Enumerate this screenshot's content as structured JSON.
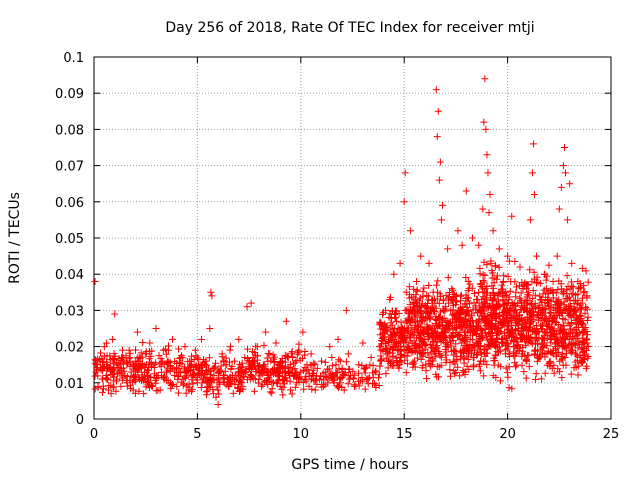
{
  "chart_data": {
    "type": "scatter",
    "title": "Day 256 of 2018, Rate Of TEC Index for receiver mtji",
    "xlabel": "GPS time / hours",
    "ylabel": "ROTI / TECUs",
    "xlim": [
      0,
      25
    ],
    "ylim": [
      0,
      0.1
    ],
    "x_ticks": [
      0,
      5,
      10,
      15,
      20,
      25
    ],
    "x_tick_labels": [
      "0",
      "5",
      "10",
      "15",
      "20",
      "25"
    ],
    "y_ticks": [
      0,
      0.01,
      0.02,
      0.03,
      0.04,
      0.05,
      0.06,
      0.07,
      0.08,
      0.09,
      0.1
    ],
    "y_tick_labels": [
      "0",
      "0.01",
      "0.02",
      "0.03",
      "0.04",
      "0.05",
      "0.06",
      "0.07",
      "0.08",
      "0.09",
      "0.1"
    ],
    "grid": true,
    "marker": "+",
    "color": "#ff0000",
    "series": [
      {
        "name": "ROTI",
        "points": [
          [
            0.05,
            0.038
          ],
          [
            0.1,
            0.013
          ],
          [
            0.2,
            0.009
          ],
          [
            0.3,
            0.016
          ],
          [
            0.4,
            0.011
          ],
          [
            0.5,
            0.02
          ],
          [
            0.6,
            0.012
          ],
          [
            0.7,
            0.008
          ],
          [
            0.8,
            0.014
          ],
          [
            0.9,
            0.022
          ],
          [
            1.0,
            0.029
          ],
          [
            1.1,
            0.011
          ],
          [
            1.2,
            0.015
          ],
          [
            1.3,
            0.009
          ],
          [
            1.4,
            0.017
          ],
          [
            1.5,
            0.012
          ],
          [
            1.6,
            0.01
          ],
          [
            1.7,
            0.019
          ],
          [
            1.8,
            0.013
          ],
          [
            1.9,
            0.008
          ],
          [
            2.0,
            0.016
          ],
          [
            2.1,
            0.024
          ],
          [
            2.2,
            0.011
          ],
          [
            2.3,
            0.014
          ],
          [
            2.4,
            0.007
          ],
          [
            2.5,
            0.018
          ],
          [
            2.6,
            0.012
          ],
          [
            2.7,
            0.021
          ],
          [
            2.8,
            0.009
          ],
          [
            2.9,
            0.015
          ],
          [
            3.0,
            0.025
          ],
          [
            3.1,
            0.012
          ],
          [
            3.2,
            0.008
          ],
          [
            3.3,
            0.016
          ],
          [
            3.4,
            0.011
          ],
          [
            3.5,
            0.013
          ],
          [
            3.6,
            0.019
          ],
          [
            3.7,
            0.01
          ],
          [
            3.8,
            0.022
          ],
          [
            3.9,
            0.012
          ],
          [
            4.0,
            0.009
          ],
          [
            4.1,
            0.014
          ],
          [
            4.2,
            0.017
          ],
          [
            4.3,
            0.011
          ],
          [
            4.4,
            0.02
          ],
          [
            4.5,
            0.013
          ],
          [
            4.6,
            0.008
          ],
          [
            4.7,
            0.016
          ],
          [
            4.8,
            0.012
          ],
          [
            4.9,
            0.019
          ],
          [
            5.0,
            0.01
          ],
          [
            5.1,
            0.014
          ],
          [
            5.2,
            0.022
          ],
          [
            5.3,
            0.011
          ],
          [
            5.4,
            0.016
          ],
          [
            5.5,
            0.009
          ],
          [
            5.6,
            0.025
          ],
          [
            5.65,
            0.035
          ],
          [
            5.7,
            0.034
          ],
          [
            5.8,
            0.012
          ],
          [
            5.9,
            0.006
          ],
          [
            6.0,
            0.004
          ],
          [
            6.1,
            0.013
          ],
          [
            6.2,
            0.018
          ],
          [
            6.3,
            0.01
          ],
          [
            6.4,
            0.015
          ],
          [
            6.5,
            0.009
          ],
          [
            6.6,
            0.02
          ],
          [
            6.7,
            0.012
          ],
          [
            6.8,
            0.016
          ],
          [
            6.9,
            0.011
          ],
          [
            7.0,
            0.022
          ],
          [
            7.1,
            0.013
          ],
          [
            7.2,
            0.009
          ],
          [
            7.4,
            0.031
          ],
          [
            7.6,
            0.032
          ],
          [
            7.5,
            0.014
          ],
          [
            7.7,
            0.017
          ],
          [
            7.8,
            0.011
          ],
          [
            7.9,
            0.02
          ],
          [
            8.0,
            0.013
          ],
          [
            8.1,
            0.009
          ],
          [
            8.2,
            0.015
          ],
          [
            8.3,
            0.024
          ],
          [
            8.4,
            0.012
          ],
          [
            8.5,
            0.018
          ],
          [
            8.6,
            0.01
          ],
          [
            8.7,
            0.014
          ],
          [
            8.8,
            0.021
          ],
          [
            8.9,
            0.012
          ],
          [
            9.0,
            0.009
          ],
          [
            9.1,
            0.016
          ],
          [
            9.2,
            0.011
          ],
          [
            9.3,
            0.027
          ],
          [
            9.4,
            0.013
          ],
          [
            9.5,
            0.008
          ],
          [
            9.6,
            0.017
          ],
          [
            9.7,
            0.012
          ],
          [
            9.8,
            0.01
          ],
          [
            9.9,
            0.019
          ],
          [
            10.0,
            0.013
          ],
          [
            10.1,
            0.024
          ],
          [
            10.2,
            0.011
          ],
          [
            10.3,
            0.015
          ],
          [
            10.4,
            0.009
          ],
          [
            10.5,
            0.018
          ],
          [
            10.6,
            0.012
          ],
          [
            10.7,
            0.008
          ],
          [
            10.8,
            0.014
          ],
          [
            10.9,
            0.011
          ],
          [
            11.0,
            0.016
          ],
          [
            11.1,
            0.009
          ],
          [
            11.2,
            0.013
          ],
          [
            11.4,
            0.02
          ],
          [
            11.5,
            0.017
          ],
          [
            11.6,
            0.012
          ],
          [
            11.7,
            0.015
          ],
          [
            11.8,
            0.022
          ],
          [
            11.9,
            0.01
          ],
          [
            12.0,
            0.014
          ],
          [
            12.1,
            0.008
          ],
          [
            12.2,
            0.03
          ],
          [
            12.3,
            0.018
          ],
          [
            12.4,
            0.012
          ],
          [
            12.6,
            0.009
          ],
          [
            12.8,
            0.015
          ],
          [
            13.0,
            0.021
          ],
          [
            13.2,
            0.011
          ],
          [
            13.4,
            0.017
          ],
          [
            13.6,
            0.013
          ],
          [
            13.8,
            0.02
          ],
          [
            13.9,
            0.016
          ],
          [
            14.0,
            0.025
          ],
          [
            14.1,
            0.03
          ],
          [
            14.2,
            0.018
          ],
          [
            14.3,
            0.033
          ],
          [
            14.4,
            0.022
          ],
          [
            14.5,
            0.04
          ],
          [
            14.6,
            0.028
          ],
          [
            14.7,
            0.019
          ],
          [
            14.8,
            0.043
          ],
          [
            14.9,
            0.025
          ],
          [
            15.0,
            0.06
          ],
          [
            15.05,
            0.068
          ],
          [
            15.1,
            0.035
          ],
          [
            15.2,
            0.02
          ],
          [
            15.3,
            0.052
          ],
          [
            15.4,
            0.03
          ],
          [
            15.5,
            0.016
          ],
          [
            15.6,
            0.038
          ],
          [
            15.7,
            0.024
          ],
          [
            15.8,
            0.045
          ],
          [
            15.9,
            0.019
          ],
          [
            16.0,
            0.031
          ],
          [
            16.1,
            0.026
          ],
          [
            16.2,
            0.043
          ],
          [
            16.3,
            0.018
          ],
          [
            16.4,
            0.035
          ],
          [
            16.5,
            0.022
          ],
          [
            16.55,
            0.091
          ],
          [
            16.6,
            0.078
          ],
          [
            16.65,
            0.085
          ],
          [
            16.7,
            0.066
          ],
          [
            16.75,
            0.071
          ],
          [
            16.8,
            0.055
          ],
          [
            16.85,
            0.059
          ],
          [
            16.9,
            0.03
          ],
          [
            17.0,
            0.021
          ],
          [
            17.1,
            0.047
          ],
          [
            17.2,
            0.025
          ],
          [
            17.3,
            0.036
          ],
          [
            17.4,
            0.019
          ],
          [
            17.5,
            0.028
          ],
          [
            17.6,
            0.052
          ],
          [
            17.7,
            0.03
          ],
          [
            17.8,
            0.048
          ],
          [
            17.9,
            0.022
          ],
          [
            18.0,
            0.063
          ],
          [
            18.1,
            0.038
          ],
          [
            18.2,
            0.027
          ],
          [
            18.3,
            0.05
          ],
          [
            18.4,
            0.019
          ],
          [
            18.5,
            0.033
          ],
          [
            18.6,
            0.048
          ],
          [
            18.7,
            0.025
          ],
          [
            18.8,
            0.058
          ],
          [
            18.85,
            0.082
          ],
          [
            18.9,
            0.094
          ],
          [
            18.95,
            0.08
          ],
          [
            19.0,
            0.073
          ],
          [
            19.05,
            0.068
          ],
          [
            19.1,
            0.057
          ],
          [
            19.15,
            0.062
          ],
          [
            19.2,
            0.043
          ],
          [
            19.3,
            0.052
          ],
          [
            19.4,
            0.031
          ],
          [
            19.5,
            0.025
          ],
          [
            19.6,
            0.047
          ],
          [
            19.7,
            0.022
          ],
          [
            19.8,
            0.038
          ],
          [
            19.9,
            0.018
          ],
          [
            20.0,
            0.045
          ],
          [
            20.1,
            0.029
          ],
          [
            20.2,
            0.056
          ],
          [
            20.3,
            0.02
          ],
          [
            20.4,
            0.035
          ],
          [
            20.5,
            0.025
          ],
          [
            20.6,
            0.042
          ],
          [
            20.7,
            0.018
          ],
          [
            20.8,
            0.032
          ],
          [
            20.9,
            0.022
          ],
          [
            21.0,
            0.037
          ],
          [
            21.1,
            0.055
          ],
          [
            21.2,
            0.068
          ],
          [
            21.25,
            0.076
          ],
          [
            21.3,
            0.062
          ],
          [
            21.4,
            0.045
          ],
          [
            21.5,
            0.028
          ],
          [
            21.6,
            0.033
          ],
          [
            21.7,
            0.021
          ],
          [
            21.8,
            0.04
          ],
          [
            21.9,
            0.018
          ],
          [
            22.0,
            0.031
          ],
          [
            22.1,
            0.024
          ],
          [
            22.2,
            0.038
          ],
          [
            22.3,
            0.02
          ],
          [
            22.4,
            0.045
          ],
          [
            22.5,
            0.058
          ],
          [
            22.6,
            0.064
          ],
          [
            22.7,
            0.07
          ],
          [
            22.75,
            0.075
          ],
          [
            22.8,
            0.068
          ],
          [
            22.9,
            0.055
          ],
          [
            23.0,
            0.065
          ],
          [
            23.1,
            0.043
          ],
          [
            23.2,
            0.03
          ],
          [
            23.3,
            0.021
          ],
          [
            23.4,
            0.038
          ],
          [
            23.5,
            0.017
          ],
          [
            23.6,
            0.032
          ],
          [
            23.7,
            0.024
          ],
          [
            23.8,
            0.014
          ],
          [
            23.9,
            0.02
          ]
        ],
        "bands": [
          {
            "x_range": [
              0,
              4.6
            ],
            "y_range": [
              0.005,
              0.022
            ],
            "count": 260
          },
          {
            "x_range": [
              4.6,
              7.2
            ],
            "y_range": [
              0.005,
              0.02
            ],
            "count": 150
          },
          {
            "x_range": [
              7.2,
              10.2
            ],
            "y_range": [
              0.005,
              0.022
            ],
            "count": 190
          },
          {
            "x_range": [
              10.2,
              13.8
            ],
            "y_range": [
              0.006,
              0.018
            ],
            "count": 110
          },
          {
            "x_range": [
              13.8,
              15.2
            ],
            "y_range": [
              0.008,
              0.035
            ],
            "count": 180
          },
          {
            "x_range": [
              15.2,
              18.6
            ],
            "y_range": [
              0.008,
              0.042
            ],
            "count": 560
          },
          {
            "x_range": [
              18.6,
              21.0
            ],
            "y_range": [
              0.006,
              0.048
            ],
            "count": 470
          },
          {
            "x_range": [
              21.0,
              23.9
            ],
            "y_range": [
              0.007,
              0.045
            ],
            "count": 480
          }
        ]
      }
    ]
  }
}
